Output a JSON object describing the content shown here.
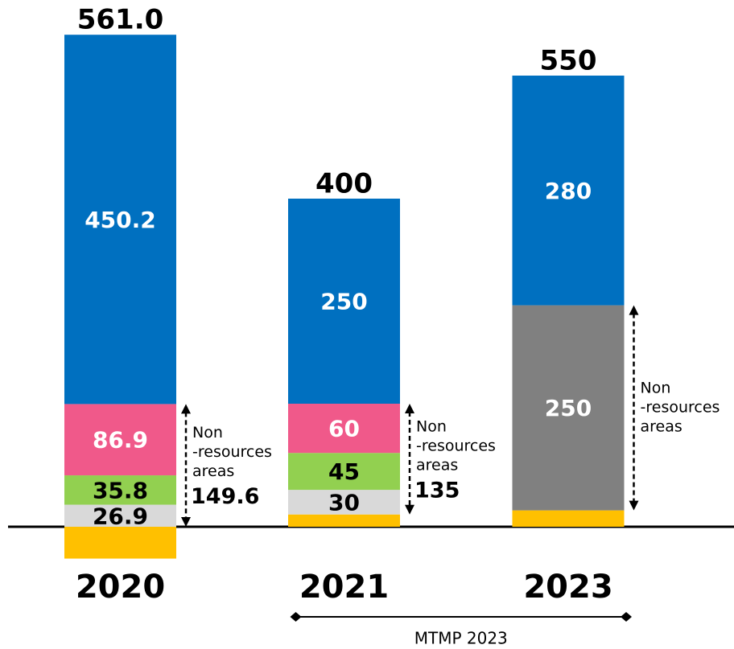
{
  "chart_data": {
    "type": "stacked_bar",
    "categories": [
      "2020",
      "2021",
      "2023"
    ],
    "series": [
      {
        "color": "#ffc000",
        "values": [
          -38.8,
          15,
          20
        ],
        "show_labels": false,
        "label_color": "#000000"
      },
      {
        "color": "#d9d9d9",
        "values": [
          26.9,
          30,
          null
        ],
        "show_labels": true,
        "label_color": "#000000"
      },
      {
        "color": "#92d050",
        "values": [
          35.8,
          45,
          null
        ],
        "show_labels": true,
        "label_color": "#000000"
      },
      {
        "color": "#f0598a",
        "values": [
          86.9,
          60,
          null
        ],
        "show_labels": true,
        "label_color": "#ffffff"
      },
      {
        "color": "#808080",
        "values": [
          null,
          null,
          250
        ],
        "show_labels": true,
        "label_color": "#ffffff"
      },
      {
        "color": "#0070c0",
        "values": [
          450.2,
          250,
          280
        ],
        "show_labels": true,
        "label_color": "#ffffff"
      }
    ],
    "totals": [
      561.0,
      400,
      550
    ],
    "total_labels": [
      "561.0",
      "400",
      "550"
    ],
    "annotations": [
      {
        "category": 0,
        "lines": [
          "Non",
          "-resources",
          "areas"
        ],
        "value": 149.6
      },
      {
        "category": 1,
        "lines": [
          "Non",
          "-resources",
          "areas"
        ],
        "value": 135
      },
      {
        "category": 2,
        "lines": [
          "Non",
          "-resources",
          "areas"
        ]
      }
    ],
    "bracket": {
      "label": "MTMP 2023",
      "from": 1,
      "to": 2
    }
  }
}
